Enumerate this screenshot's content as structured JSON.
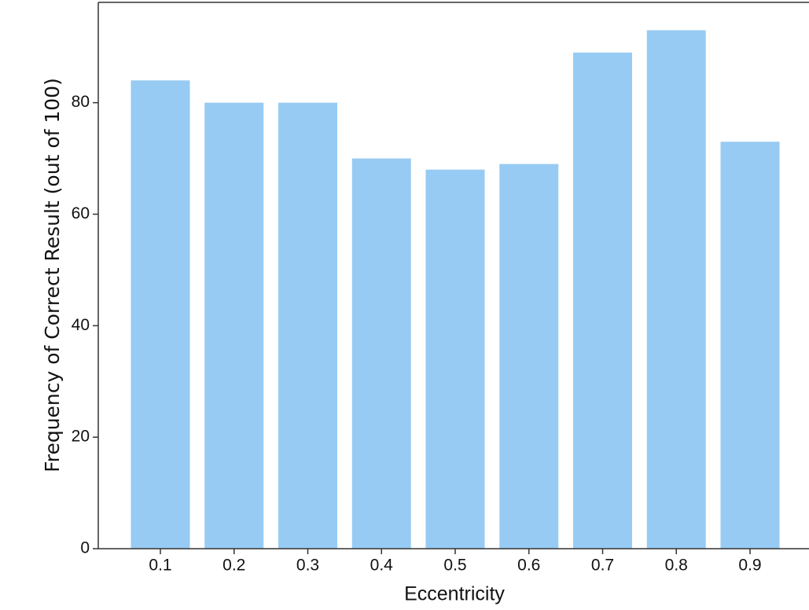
{
  "chart_data": {
    "type": "bar",
    "xlabel": "Eccentricity",
    "ylabel": "Frequency of Correct Result (out of 100)",
    "categories": [
      "0.1",
      "0.2",
      "0.3",
      "0.4",
      "0.5",
      "0.6",
      "0.7",
      "0.8",
      "0.9"
    ],
    "values": [
      84,
      80,
      80,
      70,
      68,
      69,
      89,
      93,
      73
    ],
    "color": "#97cbf3",
    "ylim": [
      0,
      98
    ],
    "yticks": [
      0,
      20,
      40,
      60,
      80
    ],
    "grid": false
  }
}
